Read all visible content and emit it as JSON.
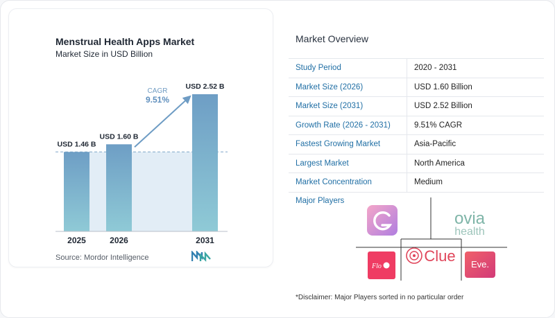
{
  "header": {
    "title": "Menstrual Health Apps Market",
    "subtitle": "Market Size in USD Billion"
  },
  "chart_data": {
    "type": "bar",
    "title": "Menstrual Health Apps Market",
    "subtitle": "Market Size in USD Billion",
    "categories": [
      "2025",
      "2026",
      "2031"
    ],
    "values": [
      1.46,
      1.6,
      2.52
    ],
    "data_labels": [
      "USD 1.46 B",
      "USD 1.60 B",
      "USD 2.52 B"
    ],
    "cagr_label": "CAGR",
    "cagr_value": "9.51%",
    "ylim": [
      0,
      2.6
    ],
    "grid": false,
    "colors": {
      "bar_top": "#6e9ec5",
      "bar_bottom": "#8fcad6",
      "band": "#e2edf6",
      "arrow": "#6e9cc4",
      "cagr_value": "#5f8fbd"
    }
  },
  "source": {
    "text": "Source:  Mordor Intelligence",
    "logo": "mordor-intelligence-logo"
  },
  "overview": {
    "title": "Market Overview",
    "rows": [
      {
        "key": "Study Period",
        "value": "2020 - 2031"
      },
      {
        "key": "Market Size (2026)",
        "value": "USD 1.60 Billion"
      },
      {
        "key": "Market Size (2031)",
        "value": "USD 2.52 Billion"
      },
      {
        "key": "Growth Rate (2026 - 2031)",
        "value": "9.51% CAGR"
      },
      {
        "key": "Fastest Growing Market",
        "value": "Asia-Pacific"
      },
      {
        "key": "Largest Market",
        "value": "North America"
      },
      {
        "key": "Market Concentration",
        "value": "Medium"
      }
    ]
  },
  "players": {
    "title": "Major Players",
    "logos": [
      {
        "name": "glow-logo",
        "text": "G"
      },
      {
        "name": "ovia-health-logo",
        "text_top": "ovia",
        "text_bottom": "health"
      },
      {
        "name": "flo-logo",
        "text": "Flo"
      },
      {
        "name": "clue-logo",
        "text": "Clue"
      },
      {
        "name": "eve-logo",
        "text": "Eve."
      }
    ],
    "colors": {
      "ovia": "#7fb5a8",
      "clue": "#e0455a",
      "flo": "#ef3c63",
      "eve": "#e8505b"
    }
  },
  "disclaimer": "*Disclaimer: Major Players sorted in no particular order"
}
